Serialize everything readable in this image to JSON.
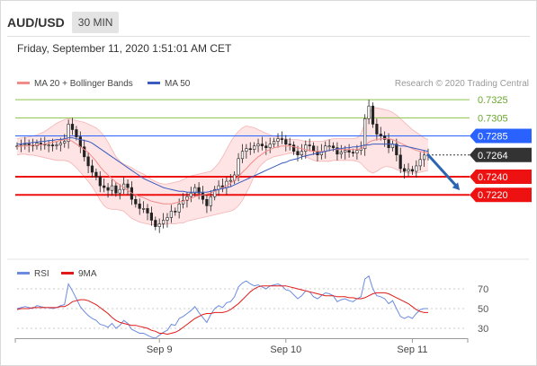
{
  "header": {
    "symbol": "AUD/USD",
    "timeframe": "30 MIN"
  },
  "datetime": "Friday, September 11, 2020 1:51:01 AM CET",
  "credit": "Research © 2020 Trading Central",
  "colors": {
    "bollinger": "#f48b8b",
    "ma50": "#3a5bbf",
    "rsi": "#6b8be0",
    "rsi_ma": "#e01a1a",
    "green": "#8bc34a",
    "blue_level": "#2962ff",
    "red_level": "#ee1111",
    "price": "#333333",
    "arrow": "#2b66b3"
  },
  "chart_data": [
    {
      "type": "candlestick",
      "legend": [
        {
          "label": "MA 20 + Bollinger Bands",
          "color": "#f48b8b"
        },
        {
          "label": "MA 50",
          "color": "#3a5bbf"
        }
      ],
      "ylim": [
        0.7148,
        0.7336
      ],
      "xlim": [
        0,
        104
      ],
      "x_ticks": [
        {
          "x": 36,
          "label": "Sep 9"
        },
        {
          "x": 68,
          "label": "Sep 10"
        },
        {
          "x": 100,
          "label": "Sep 11"
        }
      ],
      "levels": [
        {
          "value": 0.7325,
          "label": "0.7325",
          "kind": "resistance",
          "color": "#8bc34a"
        },
        {
          "value": 0.7305,
          "label": "0.7305",
          "kind": "resistance",
          "color": "#8bc34a"
        },
        {
          "value": 0.7285,
          "label": "0.7285",
          "kind": "pivot",
          "color": "#2962ff"
        },
        {
          "value": 0.7264,
          "label": "0.7264",
          "kind": "last_price",
          "color": "#333333"
        },
        {
          "value": 0.724,
          "label": "0.7240",
          "kind": "support",
          "color": "#ee1111"
        },
        {
          "value": 0.722,
          "label": "0.7220",
          "kind": "support",
          "color": "#ee1111"
        }
      ],
      "forecast": {
        "from": [
          104,
          0.7264
        ],
        "to": [
          112,
          0.7225
        ],
        "direction": "down"
      },
      "close": [
        0.7274,
        0.7275,
        0.7276,
        0.7275,
        0.7274,
        0.7277,
        0.7276,
        0.7275,
        0.7275,
        0.7274,
        0.7275,
        0.7277,
        0.7279,
        0.7298,
        0.7292,
        0.7284,
        0.7273,
        0.7262,
        0.7252,
        0.7245,
        0.724,
        0.723,
        0.7228,
        0.7225,
        0.723,
        0.7222,
        0.7226,
        0.7232,
        0.7228,
        0.7215,
        0.721,
        0.7205,
        0.7205,
        0.72,
        0.7192,
        0.7185,
        0.7188,
        0.7192,
        0.7195,
        0.7202,
        0.7201,
        0.721,
        0.7214,
        0.7218,
        0.7222,
        0.7228,
        0.7222,
        0.7215,
        0.7208,
        0.7218,
        0.7226,
        0.723,
        0.7228,
        0.7235,
        0.7236,
        0.7242,
        0.726,
        0.7268,
        0.7271,
        0.727,
        0.7274,
        0.7276,
        0.7274,
        0.7272,
        0.7276,
        0.7279,
        0.7282,
        0.7281,
        0.7276,
        0.7275,
        0.7268,
        0.7264,
        0.7268,
        0.7275,
        0.7274,
        0.7268,
        0.7264,
        0.7268,
        0.7274,
        0.7274,
        0.7272,
        0.7265,
        0.7267,
        0.7269,
        0.7267,
        0.7266,
        0.7269,
        0.7271,
        0.7304,
        0.7318,
        0.7298,
        0.7287,
        0.7285,
        0.7281,
        0.7272,
        0.7276,
        0.7264,
        0.7249,
        0.7246,
        0.7248,
        0.7246,
        0.7252,
        0.7259,
        0.7264,
        0.7264
      ],
      "ma20_bollinger": {
        "mid": [
          0.7273,
          0.7274,
          0.7274,
          0.7274,
          0.7275,
          0.7275,
          0.7275,
          0.7276,
          0.7277,
          0.7278,
          0.7279,
          0.728,
          0.7281,
          0.7281,
          0.7279,
          0.7276,
          0.7273,
          0.727,
          0.7267,
          0.7262,
          0.7257,
          0.7251,
          0.7246,
          0.7242,
          0.7238,
          0.7234,
          0.7231,
          0.7228,
          0.7225,
          0.7222,
          0.722,
          0.7218,
          0.7217,
          0.7215,
          0.7213,
          0.7212,
          0.7211,
          0.721,
          0.721,
          0.721,
          0.7211,
          0.7212,
          0.7213,
          0.7215,
          0.7216,
          0.7218,
          0.7219,
          0.722,
          0.7221,
          0.7222,
          0.7224,
          0.7226,
          0.7228,
          0.723,
          0.7233,
          0.7236,
          0.724,
          0.7245,
          0.7249,
          0.7254,
          0.7258,
          0.7262,
          0.7265,
          0.7268,
          0.727,
          0.7272,
          0.7273,
          0.7274,
          0.7274,
          0.7274,
          0.7273,
          0.7272,
          0.7271,
          0.727,
          0.7269,
          0.7268,
          0.7268,
          0.7268,
          0.7268,
          0.7269,
          0.727,
          0.727,
          0.727,
          0.727,
          0.727,
          0.727,
          0.727,
          0.7271,
          0.7274,
          0.7278,
          0.728,
          0.7281,
          0.7282,
          0.7282,
          0.7282,
          0.7281,
          0.7279,
          0.7277,
          0.7275,
          0.7273,
          0.7271,
          0.7269,
          0.7268,
          0.7267,
          0.7266
        ],
        "upper": [
          0.7282,
          0.7283,
          0.7283,
          0.7284,
          0.7285,
          0.7286,
          0.7288,
          0.729,
          0.7293,
          0.7296,
          0.7299,
          0.7301,
          0.7303,
          0.7304,
          0.7303,
          0.7302,
          0.7301,
          0.73,
          0.7298,
          0.7296,
          0.7294,
          0.729,
          0.7285,
          0.7278,
          0.727,
          0.7262,
          0.7257,
          0.7254,
          0.7252,
          0.725,
          0.7247,
          0.7245,
          0.7243,
          0.724,
          0.7237,
          0.7235,
          0.7233,
          0.7232,
          0.7232,
          0.7233,
          0.7234,
          0.7235,
          0.7237,
          0.7239,
          0.7241,
          0.7242,
          0.7243,
          0.7244,
          0.7245,
          0.7246,
          0.725,
          0.7255,
          0.7262,
          0.727,
          0.7278,
          0.7285,
          0.729,
          0.7294,
          0.7296,
          0.7295,
          0.7294,
          0.7292,
          0.729,
          0.7288,
          0.7286,
          0.7285,
          0.7284,
          0.7283,
          0.7282,
          0.7281,
          0.7281,
          0.7281,
          0.728,
          0.7279,
          0.7279,
          0.7279,
          0.7279,
          0.7279,
          0.728,
          0.7281,
          0.7282,
          0.7282,
          0.7282,
          0.7282,
          0.7282,
          0.7282,
          0.7283,
          0.7287,
          0.73,
          0.731,
          0.7316,
          0.7316,
          0.7315,
          0.7314,
          0.7313,
          0.7311,
          0.7308,
          0.7304,
          0.73,
          0.7296,
          0.7292,
          0.7289,
          0.7286,
          0.7283,
          0.7281
        ],
        "lower": [
          0.7264,
          0.7265,
          0.7265,
          0.7264,
          0.7264,
          0.7263,
          0.7262,
          0.7261,
          0.726,
          0.7259,
          0.7258,
          0.7258,
          0.7258,
          0.7257,
          0.7254,
          0.725,
          0.7245,
          0.724,
          0.7235,
          0.7229,
          0.7222,
          0.7214,
          0.7208,
          0.7205,
          0.7204,
          0.7204,
          0.7203,
          0.7202,
          0.7198,
          0.7194,
          0.7192,
          0.719,
          0.7189,
          0.7188,
          0.7187,
          0.7187,
          0.7187,
          0.7187,
          0.7188,
          0.7188,
          0.7188,
          0.7189,
          0.7189,
          0.7191,
          0.7192,
          0.7193,
          0.7194,
          0.7195,
          0.7196,
          0.7197,
          0.7198,
          0.7199,
          0.72,
          0.7201,
          0.7202,
          0.7204,
          0.7208,
          0.7214,
          0.7222,
          0.7231,
          0.7241,
          0.7249,
          0.7254,
          0.7258,
          0.726,
          0.7262,
          0.7263,
          0.7264,
          0.7265,
          0.7266,
          0.7266,
          0.7265,
          0.7263,
          0.7262,
          0.726,
          0.7258,
          0.7257,
          0.7257,
          0.7257,
          0.7257,
          0.7258,
          0.7258,
          0.7258,
          0.7258,
          0.7258,
          0.7258,
          0.7257,
          0.7255,
          0.725,
          0.7246,
          0.7244,
          0.7246,
          0.7249,
          0.7251,
          0.7251,
          0.725,
          0.7248,
          0.7246,
          0.7245,
          0.7244,
          0.7244,
          0.7244,
          0.7245,
          0.7246,
          0.7247
        ]
      },
      "ma50": [
        0.7276,
        0.7276,
        0.7277,
        0.7277,
        0.7278,
        0.7278,
        0.7279,
        0.7279,
        0.728,
        0.728,
        0.7281,
        0.7281,
        0.7282,
        0.7283,
        0.7283,
        0.7282,
        0.7281,
        0.728,
        0.7279,
        0.7277,
        0.7274,
        0.7271,
        0.7268,
        0.7265,
        0.7262,
        0.7259,
        0.7256,
        0.7253,
        0.725,
        0.7247,
        0.7244,
        0.7241,
        0.7238,
        0.7236,
        0.7234,
        0.7232,
        0.723,
        0.7228,
        0.7227,
        0.7226,
        0.7225,
        0.7224,
        0.7224,
        0.7223,
        0.7223,
        0.7223,
        0.7223,
        0.7223,
        0.7223,
        0.7224,
        0.7225,
        0.7226,
        0.7227,
        0.7228,
        0.7229,
        0.7231,
        0.7233,
        0.7235,
        0.7237,
        0.7239,
        0.7241,
        0.7243,
        0.7245,
        0.7247,
        0.7249,
        0.7251,
        0.7253,
        0.7255,
        0.7256,
        0.7258,
        0.7259,
        0.726,
        0.7262,
        0.7263,
        0.7264,
        0.7265,
        0.7266,
        0.7267,
        0.7268,
        0.7269,
        0.727,
        0.7271,
        0.7271,
        0.7272,
        0.7272,
        0.7273,
        0.7273,
        0.7274,
        0.7275,
        0.7275,
        0.7276,
        0.7276,
        0.7276,
        0.7276,
        0.7276,
        0.7276,
        0.7275,
        0.7274,
        0.7274,
        0.7273,
        0.7272,
        0.7271,
        0.727,
        0.7269,
        0.7268
      ]
    },
    {
      "type": "line",
      "legend": [
        {
          "label": "RSI",
          "color": "#6b8be0"
        },
        {
          "label": "9MA",
          "color": "#e01a1a"
        }
      ],
      "ylim": [
        20,
        80
      ],
      "y_ticks": [
        70,
        50,
        30
      ],
      "series": [
        {
          "name": "RSI",
          "color": "#6b8be0",
          "values": [
            50,
            51,
            52,
            51,
            50,
            53,
            52,
            51,
            51,
            50,
            51,
            53,
            54,
            75,
            68,
            60,
            52,
            47,
            43,
            40,
            38,
            34,
            33,
            31,
            35,
            30,
            33,
            38,
            35,
            29,
            27,
            25,
            25,
            23,
            21,
            20,
            23,
            26,
            28,
            34,
            33,
            40,
            42,
            45,
            48,
            52,
            46,
            41,
            36,
            44,
            50,
            53,
            51,
            56,
            57,
            62,
            72,
            76,
            78,
            75,
            73,
            74,
            72,
            70,
            73,
            74,
            75,
            73,
            69,
            68,
            64,
            60,
            63,
            68,
            67,
            62,
            60,
            63,
            66,
            65,
            63,
            57,
            59,
            60,
            58,
            57,
            60,
            62,
            80,
            83,
            70,
            63,
            62,
            60,
            55,
            58,
            50,
            42,
            40,
            42,
            40,
            45,
            49,
            50,
            50
          ]
        },
        {
          "name": "9MA",
          "color": "#e01a1a",
          "values": [
            49,
            50,
            50,
            50,
            51,
            51,
            51,
            51,
            51,
            51,
            51,
            52,
            52,
            54,
            57,
            58,
            59,
            59,
            58,
            56,
            54,
            51,
            48,
            45,
            41,
            38,
            36,
            35,
            34,
            33,
            33,
            32,
            31,
            30,
            28,
            27,
            25,
            25,
            24,
            25,
            26,
            28,
            31,
            34,
            37,
            40,
            42,
            44,
            45,
            45,
            46,
            46,
            46,
            47,
            49,
            52,
            55,
            59,
            63,
            67,
            70,
            72,
            73,
            73,
            73,
            73,
            73,
            73,
            73,
            72,
            71,
            70,
            69,
            68,
            67,
            66,
            65,
            64,
            63,
            63,
            63,
            62,
            62,
            62,
            61,
            61,
            60,
            60,
            61,
            63,
            65,
            66,
            66,
            66,
            65,
            63,
            61,
            59,
            57,
            55,
            52,
            49,
            47,
            46,
            46
          ]
        }
      ],
      "x_ticks": [
        {
          "x": 36,
          "label": "Sep 9"
        },
        {
          "x": 68,
          "label": "Sep 10"
        },
        {
          "x": 100,
          "label": "Sep 11"
        }
      ]
    }
  ]
}
